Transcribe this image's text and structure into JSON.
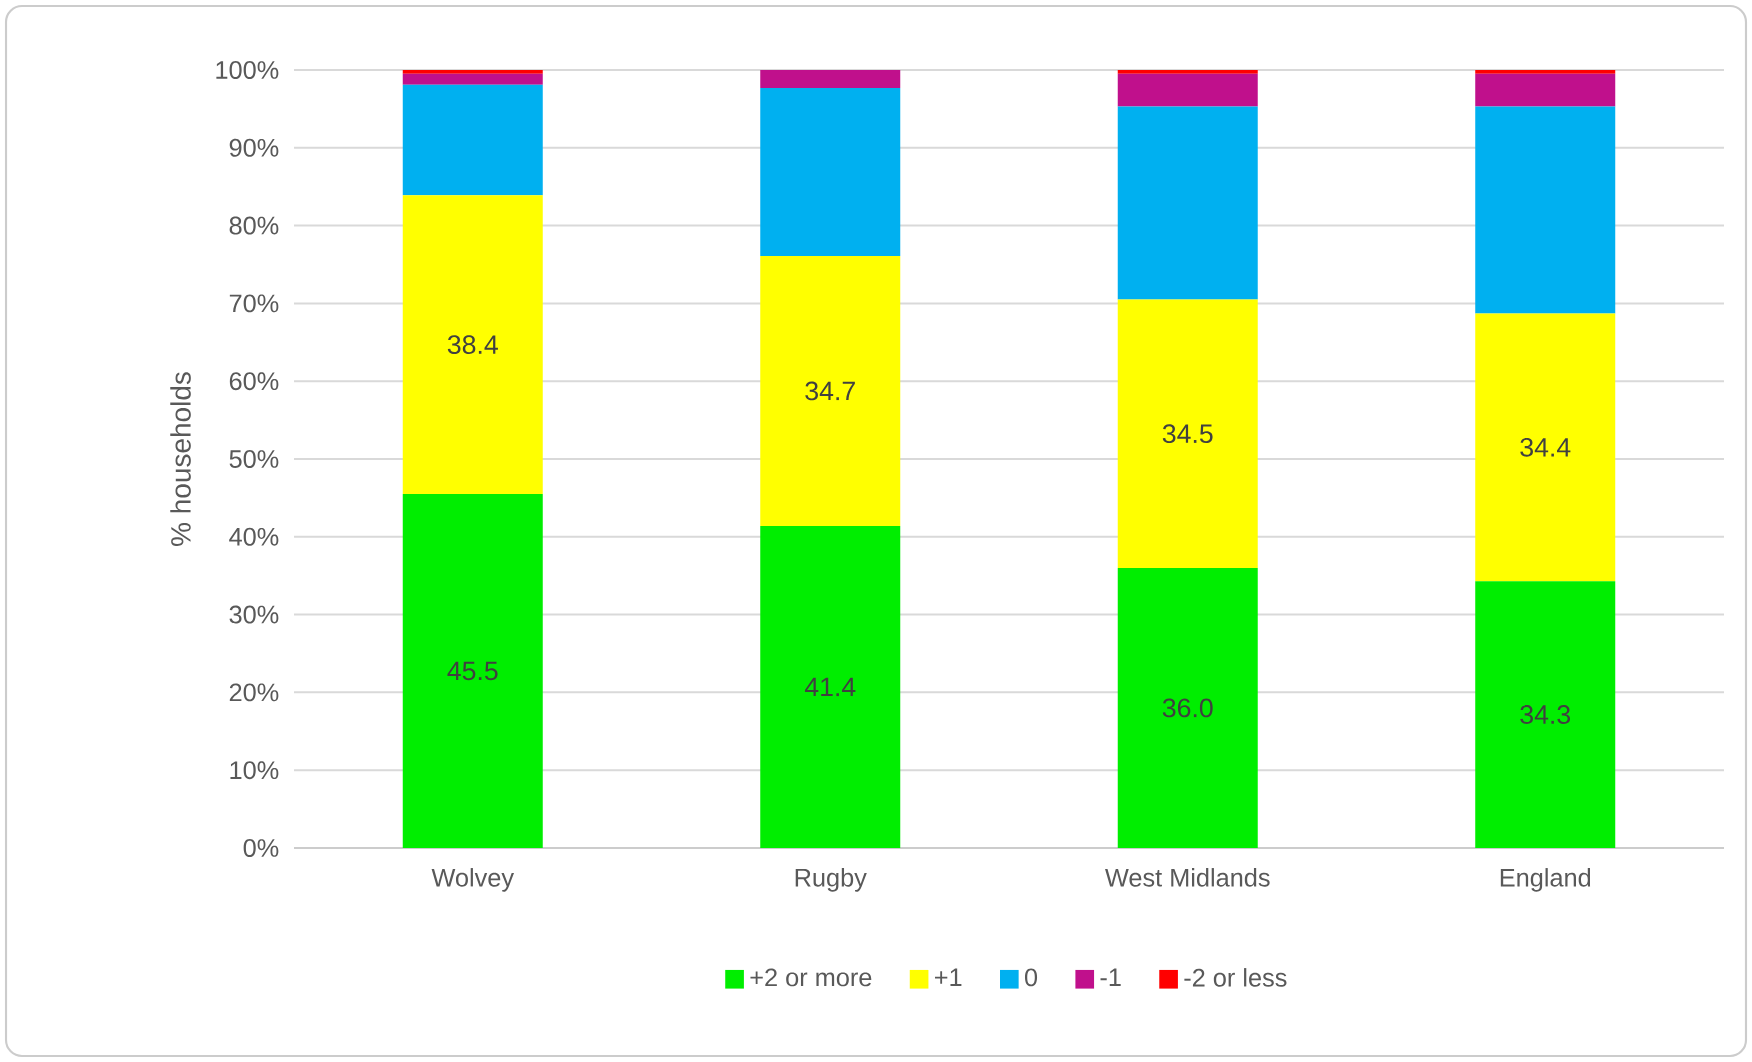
{
  "chart_data": {
    "type": "bar",
    "stacked": true,
    "ylabel": "% households",
    "categories": [
      "Wolvey",
      "Rugby",
      "West Midlands",
      "England"
    ],
    "series": [
      {
        "name": "+2 or more",
        "color": "#00ee00",
        "values": [
          45.5,
          41.4,
          36.0,
          34.3
        ],
        "value_labels": [
          "45.5",
          "41.4",
          "36.0",
          "34.3"
        ]
      },
      {
        "name": "+1",
        "color": "#ffff00",
        "values": [
          38.4,
          34.7,
          34.5,
          34.4
        ],
        "value_labels": [
          "38.4",
          "34.7",
          "34.5",
          "34.4"
        ]
      },
      {
        "name": "0",
        "color": "#00b0f0",
        "values": [
          14.2,
          21.6,
          24.8,
          26.6
        ]
      },
      {
        "name": "-1",
        "color": "#c0108c",
        "values": [
          1.4,
          2.3,
          4.2,
          4.2
        ]
      },
      {
        "name": "-2 or less",
        "color": "#ff0000",
        "values": [
          0.5,
          0,
          0.5,
          0.5
        ]
      }
    ],
    "ylim": [
      0,
      100
    ],
    "yticks": [
      {
        "value": 0,
        "label": "0%"
      },
      {
        "value": 10,
        "label": "10%"
      },
      {
        "value": 20,
        "label": "20%"
      },
      {
        "value": 30,
        "label": "30%"
      },
      {
        "value": 40,
        "label": "40%"
      },
      {
        "value": 50,
        "label": "50%"
      },
      {
        "value": 60,
        "label": "60%"
      },
      {
        "value": 70,
        "label": "70%"
      },
      {
        "value": 80,
        "label": "80%"
      },
      {
        "value": 90,
        "label": "90%"
      },
      {
        "value": 100,
        "label": "100%"
      }
    ],
    "grid": "y",
    "legend": "bottom"
  }
}
